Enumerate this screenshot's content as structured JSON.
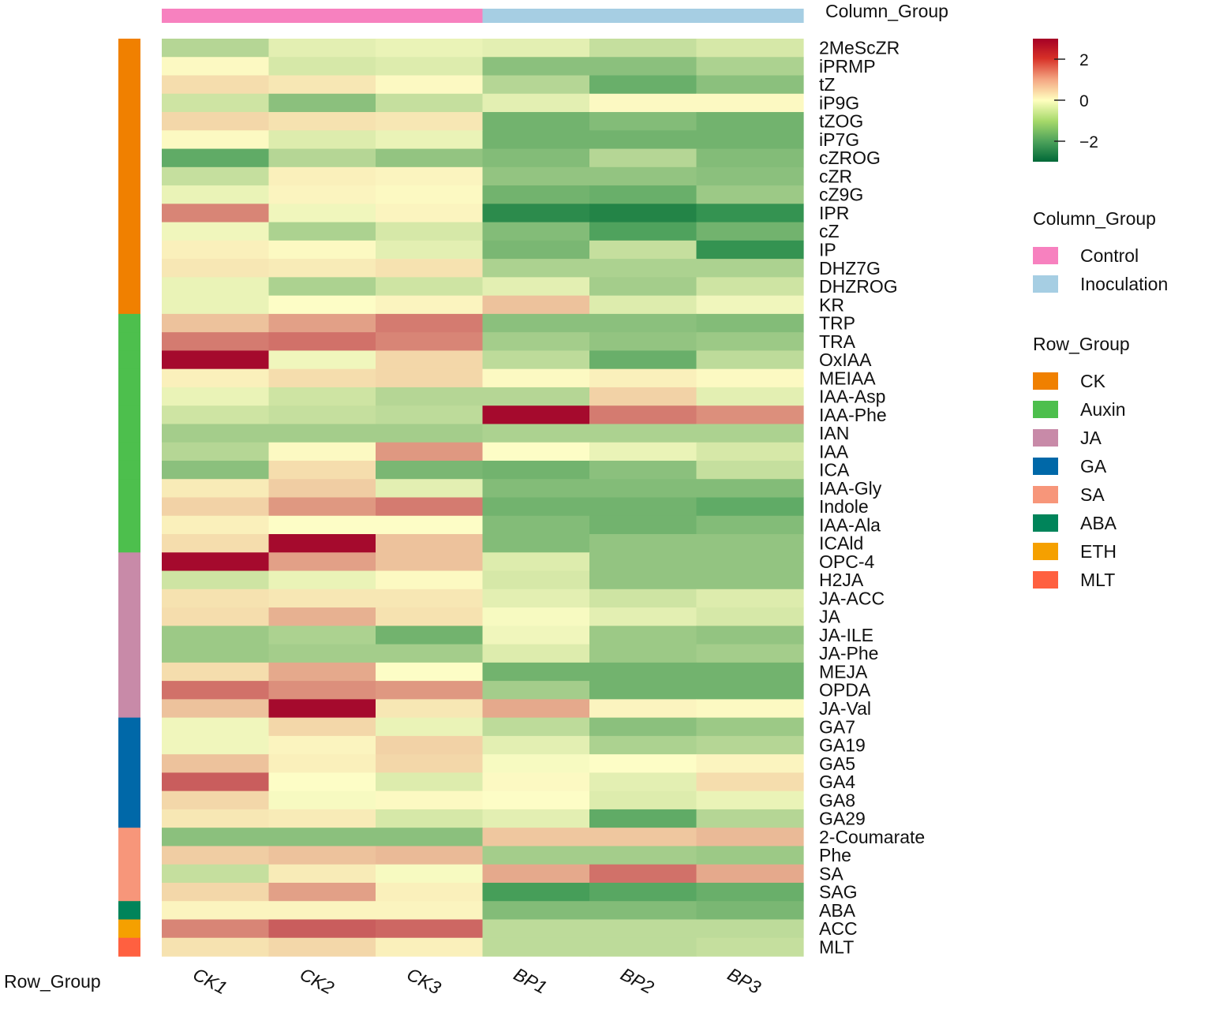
{
  "chart_data": {
    "type": "heatmap",
    "columns": [
      "CK1",
      "CK2",
      "CK3",
      "BP1",
      "BP2",
      "BP3"
    ],
    "column_groups": [
      "Control",
      "Control",
      "Control",
      "Inoculation",
      "Inoculation",
      "Inoculation"
    ],
    "rows": [
      "2MeScZR",
      "iPRMP",
      "tZ",
      "iP9G",
      "tZOG",
      "iP7G",
      "cZROG",
      "cZR",
      "cZ9G",
      "IPR",
      "cZ",
      "IP",
      "DHZ7G",
      "DHZROG",
      "KR",
      "TRP",
      "TRA",
      "OxIAA",
      "MEIAA",
      "IAA-Asp",
      "IAA-Phe",
      "IAN",
      "IAA",
      "ICA",
      "IAA-Gly",
      "Indole",
      "IAA-Ala",
      "ICAld",
      "OPC-4",
      "H2JA",
      "JA-ACC",
      "JA",
      "JA-ILE",
      "JA-Phe",
      "MEJA",
      "OPDA",
      "JA-Val",
      "GA7",
      "GA19",
      "GA5",
      "GA4",
      "GA8",
      "GA29",
      "2-Coumarate",
      "Phe",
      "SA",
      "SAG",
      "ABA",
      "ACC",
      "MLT"
    ],
    "row_groups": [
      "CK",
      "CK",
      "CK",
      "CK",
      "CK",
      "CK",
      "CK",
      "CK",
      "CK",
      "CK",
      "CK",
      "CK",
      "CK",
      "CK",
      "CK",
      "Auxin",
      "Auxin",
      "Auxin",
      "Auxin",
      "Auxin",
      "Auxin",
      "Auxin",
      "Auxin",
      "Auxin",
      "Auxin",
      "Auxin",
      "Auxin",
      "Auxin",
      "JA",
      "JA",
      "JA",
      "JA",
      "JA",
      "JA",
      "JA",
      "JA",
      "JA",
      "GA",
      "GA",
      "GA",
      "GA",
      "GA",
      "GA",
      "SA",
      "SA",
      "SA",
      "SA",
      "ABA",
      "ETH",
      "MLT"
    ],
    "values": [
      [
        -1.0,
        -0.4,
        -0.3,
        -0.4,
        -0.8,
        -0.6
      ],
      [
        0.1,
        -0.6,
        -0.5,
        -1.5,
        -1.5,
        -1.1
      ],
      [
        0.7,
        0.5,
        0.1,
        -1.0,
        -1.9,
        -1.5
      ],
      [
        -0.7,
        -1.5,
        -0.8,
        -0.4,
        0.1,
        0.1
      ],
      [
        0.8,
        0.6,
        0.5,
        -1.8,
        -1.6,
        -1.8
      ],
      [
        0.1,
        -0.5,
        -0.3,
        -1.8,
        -1.8,
        -1.8
      ],
      [
        -2.0,
        -1.0,
        -1.4,
        -1.6,
        -1.0,
        -1.6
      ],
      [
        -0.8,
        0.3,
        0.2,
        -1.4,
        -1.4,
        -1.5
      ],
      [
        -0.3,
        0.2,
        0.1,
        -1.8,
        -1.9,
        -1.3
      ],
      [
        1.9,
        -0.2,
        0.2,
        -2.6,
        -2.7,
        -2.5
      ],
      [
        -0.2,
        -1.1,
        -0.6,
        -1.6,
        -2.2,
        -1.8
      ],
      [
        0.3,
        0.1,
        -0.4,
        -1.7,
        -0.8,
        -2.5
      ],
      [
        0.5,
        0.4,
        0.6,
        -1.1,
        -1.1,
        -1.1
      ],
      [
        -0.3,
        -1.1,
        -0.7,
        -0.4,
        -1.2,
        -0.7
      ],
      [
        -0.3,
        0.0,
        0.2,
        1.2,
        -0.5,
        -0.2
      ],
      [
        1.2,
        1.6,
        2.0,
        -1.5,
        -1.5,
        -1.6
      ],
      [
        2.0,
        2.1,
        1.9,
        -1.2,
        -1.4,
        -1.3
      ],
      [
        3.0,
        -0.2,
        0.8,
        -0.9,
        -1.9,
        -0.9
      ],
      [
        0.3,
        0.7,
        0.8,
        0.1,
        0.3,
        0.1
      ],
      [
        -0.3,
        -0.7,
        -1.0,
        -1.0,
        0.9,
        -0.4
      ],
      [
        -0.7,
        -0.8,
        -0.9,
        3.0,
        2.0,
        1.8
      ],
      [
        -1.2,
        -1.2,
        -1.2,
        -1.1,
        -1.1,
        -1.1
      ],
      [
        -1.0,
        0.1,
        1.7,
        0.0,
        -0.3,
        -0.6
      ],
      [
        -1.5,
        0.7,
        -1.7,
        -1.8,
        -1.5,
        -0.8
      ],
      [
        0.4,
        1.0,
        -0.4,
        -1.6,
        -1.6,
        -1.6
      ],
      [
        0.9,
        1.7,
        2.0,
        -1.8,
        -1.8,
        -2.0
      ],
      [
        0.3,
        0.0,
        0.0,
        -1.6,
        -1.8,
        -1.6
      ],
      [
        0.7,
        3.0,
        1.2,
        -1.6,
        -1.4,
        -1.4
      ],
      [
        3.0,
        1.6,
        1.2,
        -0.5,
        -1.4,
        -1.4
      ],
      [
        -0.7,
        -0.3,
        0.1,
        -0.6,
        -1.4,
        -1.4
      ],
      [
        0.6,
        0.5,
        0.5,
        -0.4,
        -0.7,
        -0.5
      ],
      [
        0.7,
        1.4,
        0.6,
        -0.1,
        -0.4,
        -0.6
      ],
      [
        -1.3,
        -1.1,
        -1.8,
        -0.2,
        -1.3,
        -1.4
      ],
      [
        -1.3,
        -1.2,
        -1.2,
        -0.5,
        -1.3,
        -1.2
      ],
      [
        0.7,
        1.5,
        0.0,
        -1.8,
        -1.8,
        -1.8
      ],
      [
        2.1,
        1.8,
        1.7,
        -1.2,
        -1.8,
        -1.8
      ],
      [
        1.2,
        3.0,
        0.5,
        1.5,
        0.2,
        0.1
      ],
      [
        -0.2,
        0.8,
        -0.3,
        -0.9,
        -1.5,
        -1.3
      ],
      [
        -0.2,
        0.2,
        0.9,
        -0.4,
        -1.1,
        -1.0
      ],
      [
        1.2,
        0.3,
        0.8,
        -0.1,
        0.0,
        0.2
      ],
      [
        2.3,
        0.0,
        -0.5,
        0.1,
        -0.4,
        0.7
      ],
      [
        0.8,
        -0.1,
        0.1,
        0.0,
        -0.5,
        -0.3
      ],
      [
        0.5,
        0.4,
        -0.6,
        -0.4,
        -2.0,
        -1.0
      ],
      [
        -1.5,
        -1.5,
        -1.5,
        1.1,
        1.1,
        1.3
      ],
      [
        1.0,
        1.2,
        1.3,
        -1.2,
        -1.2,
        -1.3
      ],
      [
        -0.8,
        0.4,
        -0.1,
        1.5,
        2.1,
        1.5
      ],
      [
        0.8,
        1.6,
        0.3,
        -2.3,
        -2.1,
        -1.9
      ],
      [
        0.2,
        0.2,
        0.2,
        -1.6,
        -1.6,
        -1.7
      ],
      [
        1.9,
        2.3,
        2.2,
        -0.9,
        -0.9,
        -0.9
      ],
      [
        0.6,
        0.8,
        0.3,
        -0.9,
        -0.9,
        -0.8
      ]
    ],
    "color_scale": {
      "min": -3,
      "mid": 0,
      "max": 3,
      "low": "#006837",
      "mid_color": "#ffffbf",
      "high": "#a50026"
    },
    "colorbar_ticks": [
      "2",
      "0",
      "−2"
    ],
    "colorbar_tick_values": [
      2,
      0,
      -2
    ],
    "column_group_legend": {
      "title": "Column_Group",
      "items": [
        {
          "label": "Control",
          "color": "#f781bf"
        },
        {
          "label": "Inoculation",
          "color": "#a6cee3"
        }
      ]
    },
    "row_group_legend": {
      "title": "Row_Group",
      "items": [
        {
          "label": "CK",
          "color": "#f08000"
        },
        {
          "label": "Auxin",
          "color": "#4dbf4d"
        },
        {
          "label": "JA",
          "color": "#c88aa8"
        },
        {
          "label": "GA",
          "color": "#0068a8"
        },
        {
          "label": "SA",
          "color": "#f7967a"
        },
        {
          "label": "ABA",
          "color": "#00845a"
        },
        {
          "label": "ETH",
          "color": "#f5a000"
        },
        {
          "label": "MLT",
          "color": "#ff6040"
        }
      ]
    },
    "column_annotation_label": "Column_Group",
    "row_annotation_label": "Row_Group"
  }
}
